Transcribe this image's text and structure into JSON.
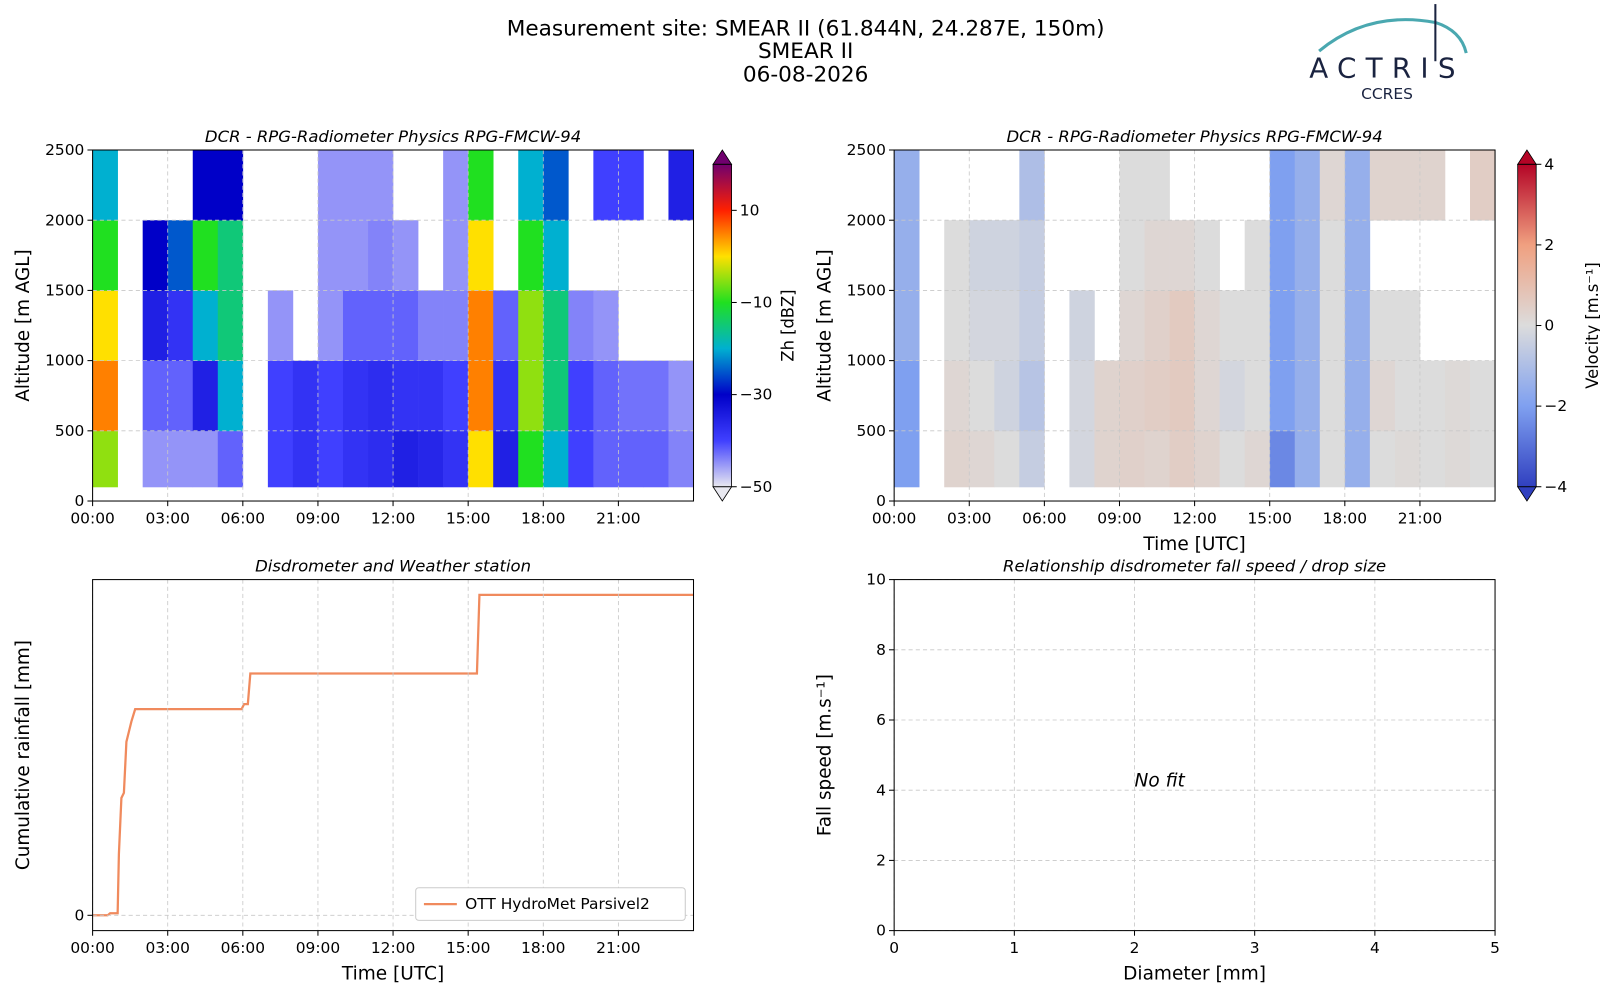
{
  "header": {
    "lines": [
      "Measurement site: SMEAR II (61.844N, 24.287E, 150m)",
      "SMEAR II",
      "06-08-2026"
    ]
  },
  "logo": {
    "name": "ACTRIS",
    "sub": "CCRES"
  },
  "chart_data": [
    {
      "type": "heatmap",
      "title": "DCR - RPG-Radiometer Physics RPG-FMCW-94",
      "ylabel": "Altitude [m AGL]",
      "xlim": [
        0,
        24
      ],
      "ylim": [
        0,
        2500
      ],
      "grid": true,
      "xticks": [
        {
          "value": 0,
          "label": "00:00"
        },
        {
          "value": 3,
          "label": "03:00"
        },
        {
          "value": 6,
          "label": "06:00"
        },
        {
          "value": 9,
          "label": "09:00"
        },
        {
          "value": 12,
          "label": "12:00"
        },
        {
          "value": 15,
          "label": "15:00"
        },
        {
          "value": 18,
          "label": "18:00"
        },
        {
          "value": 21,
          "label": "21:00"
        }
      ],
      "yticks": [
        0,
        500,
        1000,
        1500,
        2000,
        2500
      ],
      "x_edges": [
        0,
        1,
        2,
        3,
        4,
        5,
        6,
        7,
        8,
        9,
        10,
        11,
        12,
        13,
        14,
        15,
        16,
        17,
        18,
        19,
        20,
        21,
        22,
        23,
        24
      ],
      "y_edges": [
        100,
        500,
        1000,
        1500,
        2000,
        2500
      ],
      "values": [
        [
          -5,
          5,
          0,
          -10,
          -20
        ],
        [
          null,
          null,
          null,
          null,
          null
        ],
        [
          -45,
          -42,
          -35,
          -30,
          null
        ],
        [
          -45,
          -42,
          -38,
          -25,
          null
        ],
        [
          -45,
          -35,
          -20,
          -10,
          -30
        ],
        [
          -42,
          -20,
          -15,
          -15,
          -30
        ],
        [
          null,
          null,
          null,
          null,
          null
        ],
        [
          -40,
          -40,
          -45,
          null,
          null
        ],
        [
          -38,
          -38,
          null,
          null,
          null
        ],
        [
          -40,
          -40,
          -45,
          -45,
          -45
        ],
        [
          -38,
          -38,
          -42,
          -45,
          -45
        ],
        [
          -37,
          -37,
          -42,
          -44,
          -45
        ],
        [
          -35,
          -38,
          -42,
          -45,
          null
        ],
        [
          -36,
          -38,
          -44,
          null,
          null
        ],
        [
          -38,
          -40,
          -44,
          -45,
          -45
        ],
        [
          0,
          5,
          5,
          0,
          -10
        ],
        [
          -35,
          -38,
          -42,
          null,
          null
        ],
        [
          -10,
          -5,
          -5,
          -10,
          -20
        ],
        [
          -20,
          -15,
          -15,
          -20,
          -25
        ],
        [
          -40,
          -40,
          -44,
          null,
          null
        ],
        [
          -42,
          -42,
          -45,
          null,
          -40
        ],
        [
          -42,
          -43,
          null,
          null,
          -40
        ],
        [
          -42,
          -43,
          null,
          null,
          null
        ],
        [
          -44,
          -45,
          null,
          null,
          -35
        ]
      ],
      "colorbar": {
        "label": "Zh [dBZ]",
        "lim": [
          -50,
          20
        ],
        "ticks": [
          {
            "value": -50,
            "label": "−50"
          },
          {
            "value": -30,
            "label": "−30"
          },
          {
            "value": -10,
            "label": "−10"
          },
          10
        ],
        "colormap": [
          "#e8e8f0",
          "#4040ff",
          "#0000c8",
          "#00b0d0",
          "#20e020",
          "#ffe000",
          "#ff2000",
          "#70006e"
        ]
      }
    },
    {
      "type": "heatmap",
      "title": "DCR - RPG-Radiometer Physics RPG-FMCW-94",
      "ylabel": "Altitude [m AGL]",
      "xlabel": "Time [UTC]",
      "xlim": [
        0,
        24
      ],
      "ylim": [
        0,
        2500
      ],
      "grid": true,
      "xticks": [
        {
          "value": 0,
          "label": "00:00"
        },
        {
          "value": 3,
          "label": "03:00"
        },
        {
          "value": 6,
          "label": "06:00"
        },
        {
          "value": 9,
          "label": "09:00"
        },
        {
          "value": 12,
          "label": "12:00"
        },
        {
          "value": 15,
          "label": "15:00"
        },
        {
          "value": 18,
          "label": "18:00"
        },
        {
          "value": 21,
          "label": "21:00"
        }
      ],
      "yticks": [
        0,
        500,
        1000,
        1500,
        2000,
        2500
      ],
      "x_edges": [
        0,
        1,
        2,
        3,
        4,
        5,
        6,
        7,
        8,
        9,
        10,
        11,
        12,
        13,
        14,
        15,
        16,
        17,
        18,
        19,
        20,
        21,
        22,
        23,
        24
      ],
      "y_edges": [
        100,
        500,
        1000,
        1500,
        2000,
        2500
      ],
      "values": [
        [
          -2,
          -2,
          -1.5,
          -1.5,
          -1.5
        ],
        [
          null,
          null,
          null,
          null,
          null
        ],
        [
          0.3,
          0.2,
          0,
          0,
          null
        ],
        [
          0.2,
          0,
          -0.2,
          -0.3,
          null
        ],
        [
          0,
          -0.3,
          -0.2,
          -0.3,
          null
        ],
        [
          -0.5,
          -0.8,
          -0.5,
          -0.5,
          -1
        ],
        [
          null,
          null,
          null,
          null,
          null
        ],
        [
          -0.2,
          -0.2,
          -0.3,
          null,
          null
        ],
        [
          0.3,
          0.3,
          null,
          null,
          null
        ],
        [
          0.4,
          0.4,
          0.2,
          0,
          0
        ],
        [
          0.3,
          0.5,
          0.4,
          0.2,
          0
        ],
        [
          0.5,
          0.6,
          0.6,
          0.2,
          null
        ],
        [
          0.3,
          0.2,
          0.2,
          0,
          null
        ],
        [
          0,
          -0.2,
          0,
          null,
          null
        ],
        [
          0.2,
          0,
          0,
          0,
          null
        ],
        [
          -2.5,
          -2,
          -2,
          -2,
          -2
        ],
        [
          -1.5,
          -1.5,
          -1.5,
          -1.5,
          -1.5
        ],
        [
          0,
          0,
          0,
          0,
          0.2
        ],
        [
          -1.5,
          -1.5,
          -1.5,
          -1.5,
          -1.5
        ],
        [
          0,
          0.2,
          0,
          null,
          0.3
        ],
        [
          0.1,
          0,
          0,
          null,
          0.3
        ],
        [
          0,
          0,
          null,
          null,
          0.3
        ],
        [
          0.1,
          0.1,
          null,
          null,
          null
        ],
        [
          0,
          0,
          null,
          null,
          0.5
        ]
      ],
      "colorbar": {
        "label": "Velocity [m.s⁻¹]",
        "lim": [
          -4,
          4
        ],
        "ticks": [
          {
            "value": -4,
            "label": "−4"
          },
          {
            "value": -2,
            "label": "−2"
          },
          0,
          2,
          4
        ],
        "colormap": [
          "#3040c0",
          "#7fa0f0",
          "#dcdcdc",
          "#f0a080",
          "#b40426"
        ]
      }
    },
    {
      "type": "line",
      "title": "Disdrometer and Weather station",
      "ylabel": "Cumulative rainfall [mm]",
      "xlabel": "Time [UTC]",
      "xlim": [
        0,
        24
      ],
      "ylim": [
        -0.15,
        3.29
      ],
      "grid": true,
      "legend": "lower right",
      "xticks": [
        {
          "value": 0,
          "label": "00:00"
        },
        {
          "value": 3,
          "label": "03:00"
        },
        {
          "value": 6,
          "label": "06:00"
        },
        {
          "value": 9,
          "label": "09:00"
        },
        {
          "value": 12,
          "label": "12:00"
        },
        {
          "value": 15,
          "label": "15:00"
        },
        {
          "value": 18,
          "label": "18:00"
        },
        {
          "value": 21,
          "label": "21:00"
        }
      ],
      "yticks": [
        0
      ],
      "x": [
        0,
        0.6,
        0.7,
        1.0,
        1.05,
        1.15,
        1.25,
        1.35,
        1.45,
        1.55,
        1.7,
        1.8,
        5.95,
        6.05,
        6.2,
        6.3,
        15.35,
        15.45,
        24
      ],
      "series": [
        {
          "name": "OTT HydroMet Parsivel2",
          "color": "#f08a5d",
          "values": [
            0,
            0,
            0.02,
            0.02,
            0.6,
            1.15,
            1.2,
            1.7,
            1.8,
            1.9,
            2.02,
            2.02,
            2.02,
            2.07,
            2.07,
            2.37,
            2.37,
            3.14,
            3.14
          ]
        }
      ]
    },
    {
      "type": "scatter",
      "title": "Relationship disdrometer fall speed / drop size",
      "ylabel": "Fall speed [m.s⁻¹]",
      "xlabel": "Diameter [mm]",
      "xlim": [
        0,
        5
      ],
      "ylim": [
        0,
        10
      ],
      "grid": true,
      "xticks": [
        0,
        1,
        2,
        3,
        4,
        5
      ],
      "yticks": [
        0,
        2,
        4,
        6,
        8,
        10
      ],
      "annotation": "No fit"
    }
  ]
}
